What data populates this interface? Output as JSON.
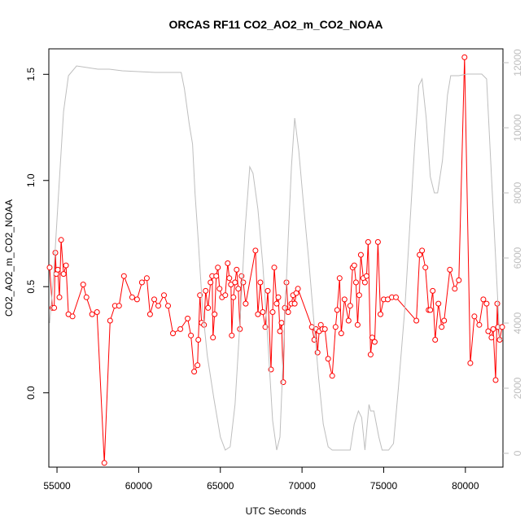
{
  "chart_data": {
    "type": "line",
    "title": "ORCAS RF11 CO2_AO2_m_CO2_NOAA",
    "xlabel": "UTC Seconds",
    "ylabel": "CO2_AO2_m_CO2_NOAA",
    "xlim": [
      54500,
      82300
    ],
    "ylim": [
      -0.35,
      1.62
    ],
    "y2lim": [
      0,
      12000
    ],
    "x_ticks": [
      55000,
      60000,
      65000,
      70000,
      75000,
      80000
    ],
    "y_ticks": [
      0.0,
      0.5,
      1.0,
      1.5
    ],
    "y_tick_labels": [
      "0.0",
      "0.5",
      "1.0",
      "1.5"
    ],
    "y2_ticks": [
      0,
      2000,
      4000,
      6000,
      8000,
      10000,
      12000
    ],
    "grid": false,
    "series": [
      {
        "color": "#ff0000",
        "axis": "left",
        "style": "line+circles",
        "points": [
          [
            54550,
            0.59
          ],
          [
            54720,
            0.4
          ],
          [
            54830,
            0.4
          ],
          [
            54900,
            0.66
          ],
          [
            54960,
            0.56
          ],
          [
            55050,
            0.58
          ],
          [
            55150,
            0.45
          ],
          [
            55250,
            0.72
          ],
          [
            55400,
            0.56
          ],
          [
            55550,
            0.6
          ],
          [
            55700,
            0.37
          ],
          [
            55950,
            0.36
          ],
          [
            56600,
            0.51
          ],
          [
            56800,
            0.45
          ],
          [
            57150,
            0.37
          ],
          [
            57450,
            0.38
          ],
          [
            57900,
            -0.33
          ],
          [
            58250,
            0.34
          ],
          [
            58550,
            0.41
          ],
          [
            58800,
            0.41
          ],
          [
            59100,
            0.55
          ],
          [
            59600,
            0.45
          ],
          [
            59900,
            0.44
          ],
          [
            60200,
            0.52
          ],
          [
            60500,
            0.54
          ],
          [
            60700,
            0.37
          ],
          [
            60950,
            0.44
          ],
          [
            61200,
            0.41
          ],
          [
            61550,
            0.46
          ],
          [
            61800,
            0.41
          ],
          [
            62100,
            0.28
          ],
          [
            62550,
            0.3
          ],
          [
            63000,
            0.35
          ],
          [
            63200,
            0.27
          ],
          [
            63400,
            0.1
          ],
          [
            63600,
            0.13
          ],
          [
            63650,
            0.25
          ],
          [
            63750,
            0.46
          ],
          [
            63850,
            0.33
          ],
          [
            64000,
            0.32
          ],
          [
            64100,
            0.48
          ],
          [
            64250,
            0.4
          ],
          [
            64400,
            0.52
          ],
          [
            64500,
            0.55
          ],
          [
            64550,
            0.26
          ],
          [
            64650,
            0.37
          ],
          [
            64750,
            0.55
          ],
          [
            64850,
            0.59
          ],
          [
            64950,
            0.49
          ],
          [
            65100,
            0.45
          ],
          [
            65300,
            0.46
          ],
          [
            65450,
            0.61
          ],
          [
            65550,
            0.54
          ],
          [
            65650,
            0.51
          ],
          [
            65700,
            0.27
          ],
          [
            65800,
            0.45
          ],
          [
            65900,
            0.52
          ],
          [
            66000,
            0.58
          ],
          [
            66100,
            0.49
          ],
          [
            66200,
            0.3
          ],
          [
            66300,
            0.55
          ],
          [
            66400,
            0.52
          ],
          [
            66550,
            0.42
          ],
          [
            67150,
            0.67
          ],
          [
            67300,
            0.37
          ],
          [
            67450,
            0.52
          ],
          [
            67600,
            0.38
          ],
          [
            67750,
            0.31
          ],
          [
            67900,
            0.48
          ],
          [
            68100,
            0.11
          ],
          [
            68200,
            0.38
          ],
          [
            68300,
            0.59
          ],
          [
            68450,
            0.42
          ],
          [
            68550,
            0.45
          ],
          [
            68650,
            0.29
          ],
          [
            68750,
            0.33
          ],
          [
            68850,
            0.05
          ],
          [
            68950,
            0.4
          ],
          [
            69050,
            0.52
          ],
          [
            69150,
            0.38
          ],
          [
            69350,
            0.42
          ],
          [
            69450,
            0.46
          ],
          [
            69550,
            0.42
          ],
          [
            69650,
            0.47
          ],
          [
            69750,
            0.49
          ],
          [
            70600,
            0.31
          ],
          [
            70750,
            0.25
          ],
          [
            70850,
            0.3
          ],
          [
            70950,
            0.19
          ],
          [
            71050,
            0.29
          ],
          [
            71150,
            0.32
          ],
          [
            71250,
            0.3
          ],
          [
            71400,
            0.3
          ],
          [
            71600,
            0.16
          ],
          [
            71850,
            0.08
          ],
          [
            72050,
            0.31
          ],
          [
            72150,
            0.39
          ],
          [
            72300,
            0.54
          ],
          [
            72400,
            0.28
          ],
          [
            72600,
            0.44
          ],
          [
            72850,
            0.34
          ],
          [
            72950,
            0.41
          ],
          [
            73100,
            0.59
          ],
          [
            73200,
            0.6
          ],
          [
            73300,
            0.52
          ],
          [
            73400,
            0.32
          ],
          [
            73500,
            0.46
          ],
          [
            73600,
            0.65
          ],
          [
            73750,
            0.54
          ],
          [
            73850,
            0.52
          ],
          [
            73950,
            0.55
          ],
          [
            74050,
            0.71
          ],
          [
            74200,
            0.18
          ],
          [
            74300,
            0.26
          ],
          [
            74450,
            0.24
          ],
          [
            74650,
            0.71
          ],
          [
            74800,
            0.37
          ],
          [
            75000,
            0.44
          ],
          [
            75250,
            0.44
          ],
          [
            75500,
            0.45
          ],
          [
            75750,
            0.45
          ],
          [
            77000,
            0.34
          ],
          [
            77200,
            0.65
          ],
          [
            77350,
            0.67
          ],
          [
            77550,
            0.59
          ],
          [
            77750,
            0.39
          ],
          [
            77850,
            0.39
          ],
          [
            78000,
            0.48
          ],
          [
            78150,
            0.25
          ],
          [
            78350,
            0.42
          ],
          [
            78550,
            0.31
          ],
          [
            78700,
            0.34
          ],
          [
            79050,
            0.58
          ],
          [
            79350,
            0.49
          ],
          [
            79600,
            0.53
          ],
          [
            79950,
            1.58
          ],
          [
            80300,
            0.14
          ],
          [
            80550,
            0.36
          ],
          [
            80850,
            0.32
          ],
          [
            81100,
            0.44
          ],
          [
            81300,
            0.42
          ],
          [
            81400,
            0.29
          ],
          [
            81600,
            0.26
          ],
          [
            81700,
            0.3
          ],
          [
            81850,
            0.06
          ],
          [
            81950,
            0.42
          ],
          [
            82000,
            0.31
          ],
          [
            82100,
            0.25
          ],
          [
            82250,
            0.31
          ]
        ]
      },
      {
        "color": "#bebebe",
        "axis": "right",
        "style": "line",
        "points": [
          [
            54550,
            4000
          ],
          [
            54800,
            5500
          ],
          [
            55100,
            8000
          ],
          [
            55400,
            10500
          ],
          [
            55700,
            11600
          ],
          [
            56200,
            11900
          ],
          [
            57500,
            11800
          ],
          [
            58200,
            11800
          ],
          [
            59000,
            11750
          ],
          [
            61000,
            11700
          ],
          [
            62600,
            11700
          ],
          [
            62800,
            11200
          ],
          [
            63100,
            10100
          ],
          [
            63300,
            9500
          ],
          [
            63450,
            8000
          ],
          [
            63650,
            6500
          ],
          [
            63900,
            4500
          ],
          [
            64200,
            3000
          ],
          [
            64600,
            1700
          ],
          [
            65000,
            500
          ],
          [
            65300,
            100
          ],
          [
            65600,
            200
          ],
          [
            65900,
            1500
          ],
          [
            66200,
            4000
          ],
          [
            66500,
            6800
          ],
          [
            66800,
            8800
          ],
          [
            67000,
            8600
          ],
          [
            67300,
            7500
          ],
          [
            67600,
            5800
          ],
          [
            67900,
            3500
          ],
          [
            68200,
            1000
          ],
          [
            68450,
            100
          ],
          [
            68650,
            500
          ],
          [
            68850,
            3000
          ],
          [
            69100,
            6000
          ],
          [
            69350,
            8800
          ],
          [
            69550,
            10300
          ],
          [
            69800,
            9300
          ],
          [
            70100,
            7600
          ],
          [
            70400,
            6000
          ],
          [
            70700,
            4200
          ],
          [
            71000,
            2400
          ],
          [
            71300,
            900
          ],
          [
            71600,
            200
          ],
          [
            71850,
            100
          ],
          [
            72200,
            100
          ],
          [
            72500,
            100
          ],
          [
            72950,
            100
          ],
          [
            73200,
            900
          ],
          [
            73450,
            1300
          ],
          [
            73650,
            1100
          ],
          [
            73850,
            100
          ],
          [
            74100,
            1500
          ],
          [
            74200,
            1300
          ],
          [
            74400,
            1300
          ],
          [
            74700,
            500
          ],
          [
            74900,
            100
          ],
          [
            75300,
            100
          ],
          [
            75600,
            300
          ],
          [
            75900,
            2000
          ],
          [
            76300,
            4500
          ],
          [
            76600,
            7000
          ],
          [
            76900,
            9500
          ],
          [
            77150,
            11300
          ],
          [
            77350,
            11500
          ],
          [
            77600,
            10300
          ],
          [
            77850,
            8500
          ],
          [
            78100,
            8000
          ],
          [
            78300,
            8000
          ],
          [
            78600,
            9000
          ],
          [
            78900,
            11000
          ],
          [
            79100,
            11600
          ],
          [
            79600,
            11600
          ],
          [
            80100,
            11650
          ],
          [
            80500,
            11650
          ],
          [
            81000,
            11650
          ],
          [
            81300,
            11500
          ],
          [
            81600,
            8500
          ],
          [
            81900,
            5500
          ],
          [
            82100,
            3500
          ],
          [
            82300,
            3500
          ]
        ]
      }
    ]
  }
}
